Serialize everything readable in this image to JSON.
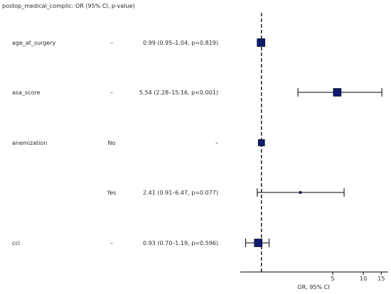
{
  "chart_data": {
    "type": "forest",
    "header": "postop_medical_complic: OR (95% CI, p-value)",
    "xlabel": "OR, 95% CI",
    "x_scale": "log",
    "xlim": [
      0.62,
      17.5
    ],
    "reference_line": 1,
    "ticks": [
      {
        "value": 5,
        "label": "5"
      },
      {
        "value": 10,
        "label": "10"
      },
      {
        "value": 15,
        "label": "15"
      }
    ],
    "rows": [
      {
        "variable": "age_at_surgery",
        "level": "–",
        "text": "0.99 (0.95–1.04, p=0.819)",
        "or": 0.99,
        "lo": 0.95,
        "hi": 1.04,
        "box": "large"
      },
      {
        "variable": "asa_score",
        "level": "–",
        "text": "5.54 (2.28–15.16, p<0.001)",
        "or": 5.54,
        "lo": 2.28,
        "hi": 15.16,
        "box": "large"
      },
      {
        "variable": "anemization",
        "level": "No",
        "text": "–",
        "or": 1,
        "lo": null,
        "hi": null,
        "box": "medium"
      },
      {
        "variable": "",
        "level": "Yes",
        "text": "2.41 (0.91–6.47, p=0.077)",
        "or": 2.41,
        "lo": 0.91,
        "hi": 6.47,
        "box": "small"
      },
      {
        "variable": "cci",
        "level": "–",
        "text": "0.93 (0.70–1.19, p=0.596)",
        "or": 0.93,
        "lo": 0.7,
        "hi": 1.19,
        "box": "large"
      }
    ],
    "colors": {
      "marker": "#0d1a6e",
      "line": "#000000",
      "text": "#2b2b2b"
    }
  }
}
